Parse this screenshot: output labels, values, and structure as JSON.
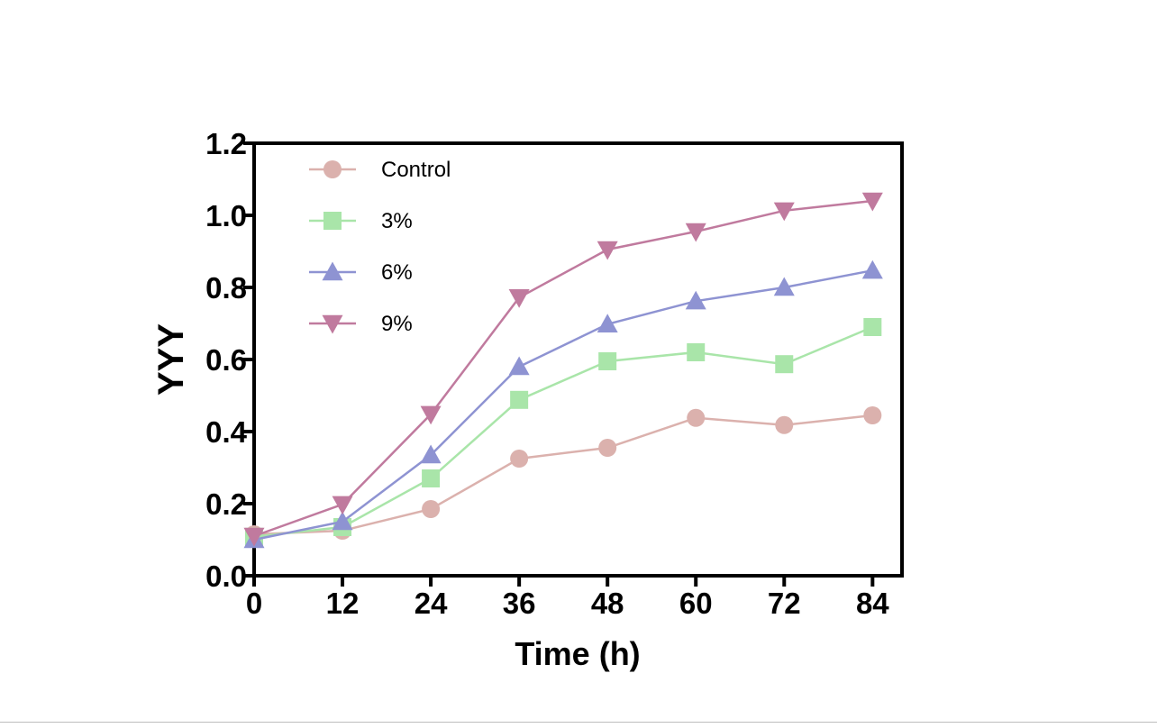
{
  "chart_data": {
    "type": "line",
    "title": "",
    "xlabel": "Time (h)",
    "ylabel": "YYY",
    "x": [
      0,
      12,
      24,
      36,
      48,
      60,
      72,
      84
    ],
    "x_ticks": [
      "0",
      "12",
      "24",
      "36",
      "48",
      "60",
      "72",
      "84"
    ],
    "y_ticks": [
      "0.0",
      "0.2",
      "0.4",
      "0.6",
      "0.8",
      "1.0",
      "1.2"
    ],
    "xlim": [
      0,
      88
    ],
    "ylim": [
      0,
      1.2
    ],
    "grid": false,
    "legend_position": "top-left",
    "series": [
      {
        "name": "Control",
        "marker": "circle",
        "color": "#dbb1ad",
        "values": [
          0.115,
          0.125,
          0.185,
          0.325,
          0.355,
          0.438,
          0.418,
          0.445
        ]
      },
      {
        "name": "3%",
        "marker": "square",
        "color": "#a9e5a9",
        "values": [
          0.108,
          0.135,
          0.27,
          0.488,
          0.595,
          0.62,
          0.587,
          0.69
        ]
      },
      {
        "name": "6%",
        "marker": "triangle-up",
        "color": "#8e93d2",
        "values": [
          0.1,
          0.15,
          0.335,
          0.58,
          0.698,
          0.762,
          0.8,
          0.847
        ]
      },
      {
        "name": "9%",
        "marker": "triangle-down",
        "color": "#c07a9e",
        "values": [
          0.11,
          0.198,
          0.448,
          0.772,
          0.905,
          0.955,
          1.013,
          1.04
        ]
      }
    ]
  }
}
